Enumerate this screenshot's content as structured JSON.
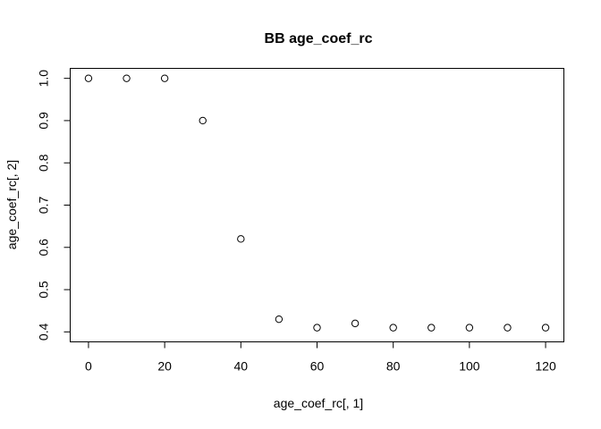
{
  "chart_data": {
    "type": "scatter",
    "title": "BB age_coef_rc",
    "xlabel": "age_coef_rc[, 1]",
    "ylabel": "age_coef_rc[, 2]",
    "x": [
      0,
      10,
      20,
      30,
      40,
      50,
      60,
      70,
      80,
      90,
      100,
      110,
      120
    ],
    "y": [
      1.0,
      1.0,
      1.0,
      0.9,
      0.62,
      0.43,
      0.41,
      0.42,
      0.41,
      0.41,
      0.41,
      0.41,
      0.41
    ],
    "xlim": [
      -4.8,
      124.8
    ],
    "ylim": [
      0.3764,
      1.0236
    ],
    "xticks": [
      0,
      20,
      40,
      60,
      80,
      100,
      120
    ],
    "xtick_labels": [
      "0",
      "20",
      "40",
      "60",
      "80",
      "100",
      "120"
    ],
    "yticks": [
      0.4,
      0.5,
      0.6,
      0.7,
      0.8,
      0.9,
      1.0
    ],
    "ytick_labels": [
      "0.4",
      "0.5",
      "0.6",
      "0.7",
      "0.8",
      "0.9",
      "1.0"
    ],
    "marker": "open-circle",
    "grid": false,
    "legend": false,
    "colors": {
      "points": "#000000",
      "frame": "#000000",
      "background": "#ffffff"
    }
  }
}
